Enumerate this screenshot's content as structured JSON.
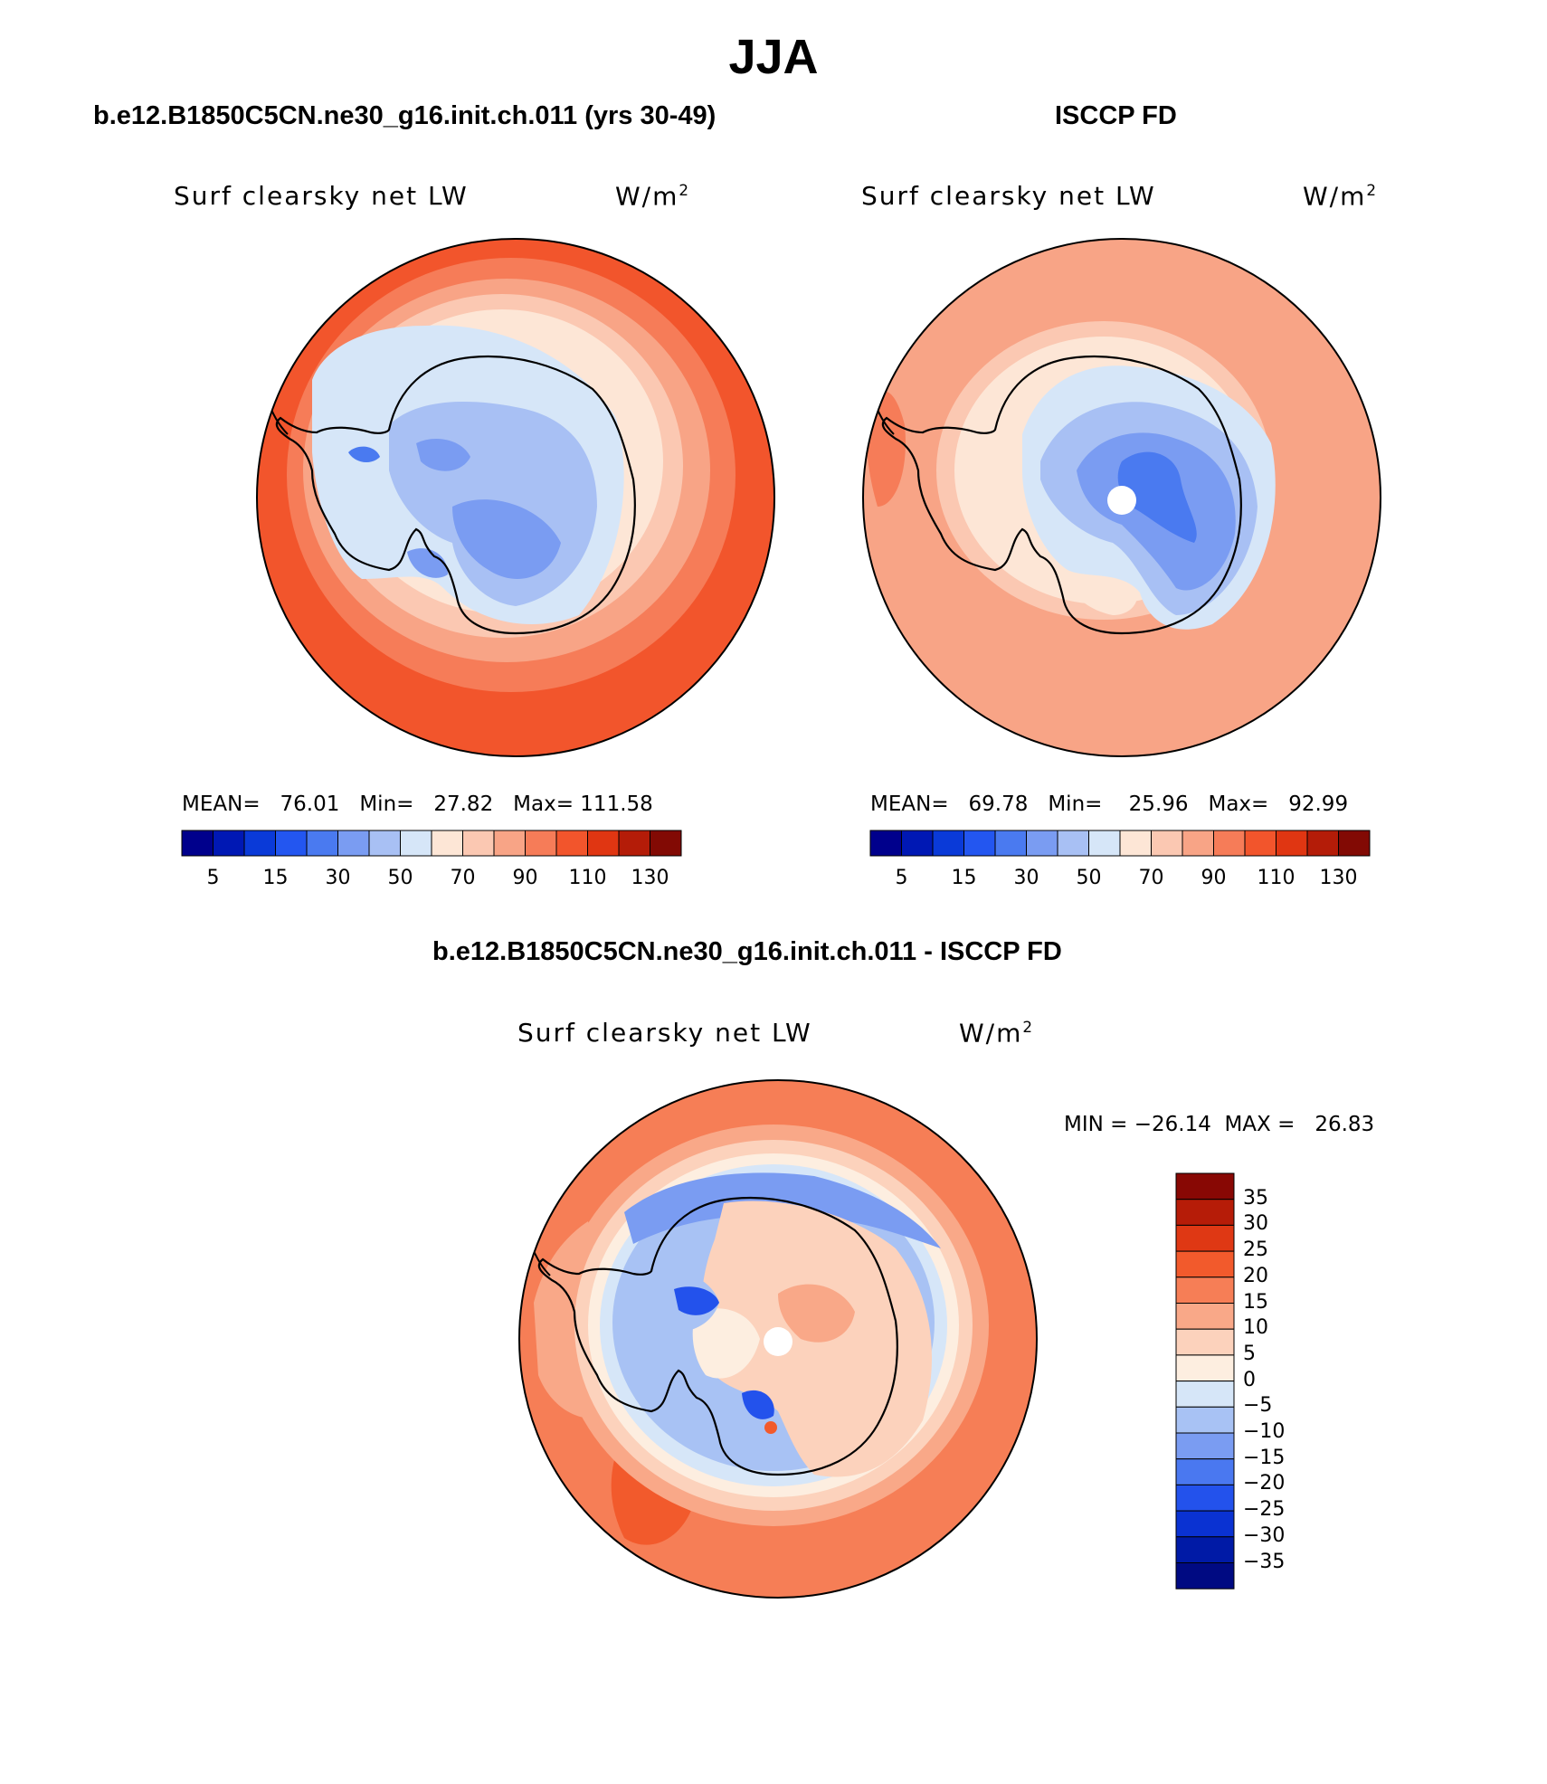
{
  "title": "JJA",
  "panels": [
    {
      "heading": "b.e12.B1850C5CN.ne30_g16.init.ch.011 (yrs 30-49)",
      "variable": "Surf clearsky net LW",
      "units_base": "W/m",
      "units_exp": "2",
      "stats": {
        "mean_label": "MEAN=",
        "mean": "76.01",
        "min_label": "Min=",
        "min": "27.82",
        "max_label": "Max=",
        "max": "111.58"
      }
    },
    {
      "heading": "ISCCP FD",
      "variable": "Surf clearsky net LW",
      "units_base": "W/m",
      "units_exp": "2",
      "stats": {
        "mean_label": "MEAN=",
        "mean": "69.78",
        "min_label": "Min=",
        "min": "25.96",
        "max_label": "Max=",
        "max": "92.99"
      }
    },
    {
      "heading": "b.e12.B1850C5CN.ne30_g16.init.ch.011 - ISCCP FD",
      "variable": "Surf clearsky net LW",
      "units_base": "W/m",
      "units_exp": "2",
      "stats_line": "MIN = −26.14  MAX =   26.83"
    }
  ],
  "abs_colorbar": {
    "colors": [
      "#00008c",
      "#0018b4",
      "#0a3ad8",
      "#2356f0",
      "#4a7af0",
      "#7a9cf2",
      "#a8c0f4",
      "#d6e6f8",
      "#fde6d6",
      "#fbc8b2",
      "#f8a486",
      "#f67c58",
      "#f2552c",
      "#e03612",
      "#b41c08",
      "#820a04"
    ],
    "tick_labels": [
      "5",
      "15",
      "30",
      "50",
      "70",
      "90",
      "110",
      "130"
    ]
  },
  "diff_colorbar": {
    "colors_top_to_bottom": [
      "#880804",
      "#b61c08",
      "#df3814",
      "#f25a2c",
      "#f67e56",
      "#f9a888",
      "#fcd2bc",
      "#fdeee0",
      "#d6e6f8",
      "#a8c2f4",
      "#7a9cf2",
      "#4a78f0",
      "#2352ec",
      "#0a32d2",
      "#001aa6",
      "#000a82"
    ],
    "tick_labels": [
      "35",
      "30",
      "25",
      "20",
      "15",
      "10",
      "5",
      "0",
      "−5",
      "−10",
      "−15",
      "−20",
      "−25",
      "−30",
      "−35"
    ]
  },
  "map_regions": [
    "ocean-field",
    "antarctica-coastline",
    "interior-field",
    "pole-hole"
  ]
}
